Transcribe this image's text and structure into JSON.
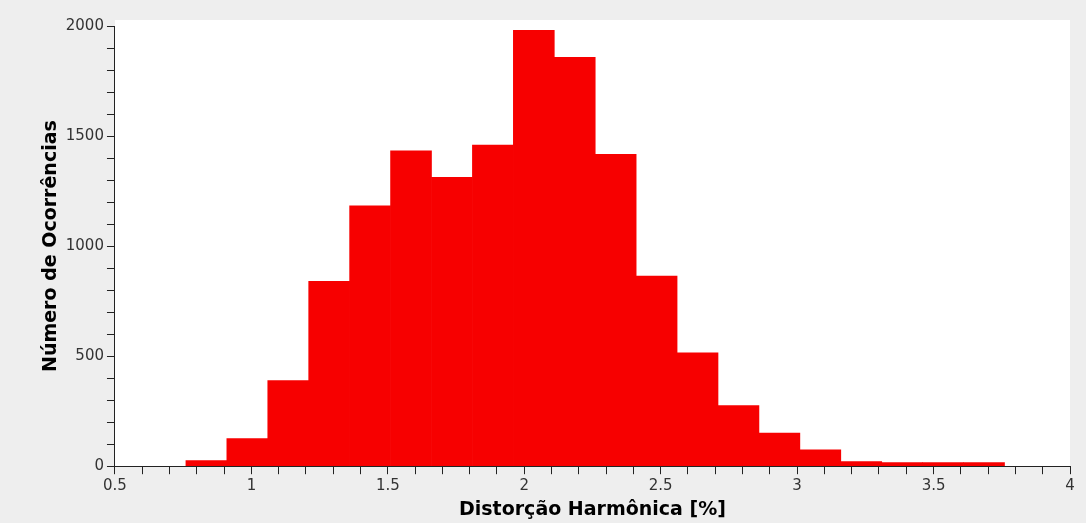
{
  "chart_data": {
    "type": "histogram",
    "xlabel": "Distorção Harmônica [%]",
    "ylabel": "Número de Ocorrências",
    "bins": [
      0.76,
      0.91,
      1.06,
      1.21,
      1.36,
      1.51,
      1.66,
      1.81,
      1.96,
      2.11,
      2.26,
      2.41,
      2.56,
      2.71,
      2.86,
      3.01,
      3.16,
      3.31,
      3.46,
      3.61,
      3.76
    ],
    "values": [
      25,
      125,
      389,
      840,
      1183,
      1433,
      1313,
      1459,
      1980,
      1858,
      1417,
      864,
      515,
      275,
      151,
      74,
      21,
      17,
      17,
      17
    ],
    "color": "#f70000",
    "xlim": [
      0.5,
      4
    ],
    "xticks": [
      0.5,
      {
        "value": 0.6,
        "label": null
      },
      {
        "value": 0.7,
        "label": null
      },
      {
        "value": 0.8,
        "label": null
      },
      {
        "value": 0.9,
        "label": null
      },
      1,
      {
        "value": 1.1,
        "label": null
      },
      {
        "value": 1.2,
        "label": null
      },
      {
        "value": 1.3,
        "label": null
      },
      {
        "value": 1.4,
        "label": null
      },
      1.5,
      {
        "value": 1.6,
        "label": null
      },
      {
        "value": 1.7,
        "label": null
      },
      {
        "value": 1.8,
        "label": null
      },
      {
        "value": 1.9,
        "label": null
      },
      2,
      {
        "value": 2.1,
        "label": null
      },
      {
        "value": 2.2,
        "label": null
      },
      {
        "value": 2.3,
        "label": null
      },
      {
        "value": 2.4,
        "label": null
      },
      2.5,
      {
        "value": 2.6,
        "label": null
      },
      {
        "value": 2.7,
        "label": null
      },
      {
        "value": 2.8,
        "label": null
      },
      {
        "value": 2.9,
        "label": null
      },
      3,
      {
        "value": 3.1,
        "label": null
      },
      {
        "value": 3.2,
        "label": null
      },
      {
        "value": 3.3,
        "label": null
      },
      {
        "value": 3.4,
        "label": null
      },
      3.5,
      {
        "value": 3.6,
        "label": null
      },
      {
        "value": 3.7,
        "label": null
      },
      {
        "value": 3.8,
        "label": null
      },
      {
        "value": 3.9,
        "label": null
      },
      4
    ],
    "ylim": [
      0,
      2000
    ],
    "yticks": [
      0,
      {
        "value": 100,
        "label": null
      },
      {
        "value": 200,
        "label": null
      },
      {
        "value": 300,
        "label": null
      },
      {
        "value": 400,
        "label": null
      },
      500,
      {
        "value": 600,
        "label": null
      },
      {
        "value": 700,
        "label": null
      },
      {
        "value": 800,
        "label": null
      },
      {
        "value": 900,
        "label": null
      },
      1000,
      {
        "value": 1100,
        "label": null
      },
      {
        "value": 1200,
        "label": null
      },
      {
        "value": 1300,
        "label": null
      },
      {
        "value": 1400,
        "label": null
      },
      1500,
      {
        "value": 1600,
        "label": null
      },
      {
        "value": 1700,
        "label": null
      },
      {
        "value": 1800,
        "label": null
      },
      {
        "value": 1900,
        "label": null
      },
      2000
    ],
    "grid": false,
    "legend": false
  }
}
